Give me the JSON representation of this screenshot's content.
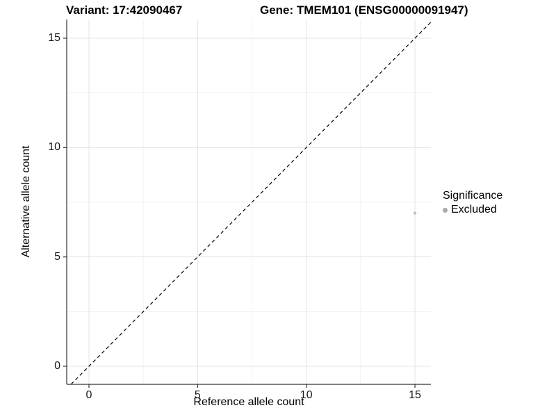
{
  "chart_data": {
    "type": "scatter",
    "title_left": "Variant: 17:42090467",
    "title_right": "Gene: TMEM101 (ENSG00000091947)",
    "xlabel": "Reference allele count",
    "ylabel": "Alternative allele count",
    "xlim": [
      -1.0,
      15.7
    ],
    "ylim": [
      -0.85,
      15.85
    ],
    "x_ticks": [
      0,
      5,
      10,
      15
    ],
    "y_ticks": [
      0,
      5,
      10,
      15
    ],
    "x_minor_ticks": [
      2.5,
      7.5,
      12.5
    ],
    "y_minor_ticks": [
      2.5,
      7.5,
      12.5
    ],
    "grid": true,
    "reference_line": {
      "type": "identity",
      "slope": 1,
      "intercept": 0,
      "style": "dashed",
      "color": "#000000"
    },
    "series": [
      {
        "name": "Excluded",
        "points": [
          {
            "x": 15,
            "y": 7
          }
        ],
        "color": "#c2c2c2",
        "point_radius": 2.2
      }
    ],
    "legend": {
      "title": "Significance",
      "position": "right",
      "items": [
        {
          "label": "Excluded",
          "color": "#a9a9a9"
        }
      ]
    },
    "colors": {
      "axis_line": "#333333",
      "grid_major": "#e3e3e3",
      "grid_minor": "#f1f1f1",
      "tick_mark": "#333333"
    }
  }
}
